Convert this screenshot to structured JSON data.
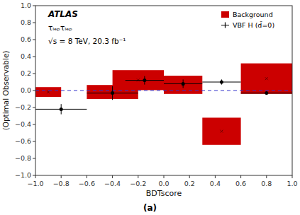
{
  "chart_data": {
    "type": "scatter",
    "x_label": "BDTscore",
    "y_label": "⟨Optimal Observable⟩",
    "caption": "(a)",
    "annotations": [
      "ATLAS",
      "τₗₑₚτₗₑₚ",
      "√s = 8 TeV, 20.3 fb⁻¹"
    ],
    "xlim": [
      -1,
      1
    ],
    "ylim": [
      -1,
      1
    ],
    "xticks": [
      {
        "value": -1.0,
        "label": "−1.0"
      },
      {
        "value": -0.8,
        "label": "−0.8"
      },
      {
        "value": -0.6,
        "label": "−0.6"
      },
      {
        "value": -0.4,
        "label": "−0.4"
      },
      {
        "value": -0.2,
        "label": "−0.2"
      },
      {
        "value": 0.0,
        "label": "0.0"
      },
      {
        "value": 0.2,
        "label": "0.2"
      },
      {
        "value": 0.4,
        "label": "0.4"
      },
      {
        "value": 0.6,
        "label": "0.6"
      },
      {
        "value": 0.8,
        "label": "0.8"
      },
      {
        "value": 1.0,
        "label": "1.0"
      }
    ],
    "yticks": [
      {
        "value": -1.0,
        "label": "−1.0"
      },
      {
        "value": -0.8,
        "label": "−0.8"
      },
      {
        "value": -0.6,
        "label": "−0.6"
      },
      {
        "value": -0.4,
        "label": "−0.4"
      },
      {
        "value": -0.2,
        "label": "−0.2"
      },
      {
        "value": 0.0,
        "label": "0.0"
      },
      {
        "value": 0.2,
        "label": "0.2"
      },
      {
        "value": 0.4,
        "label": "0.4"
      },
      {
        "value": 0.6,
        "label": "0.6"
      },
      {
        "value": 0.8,
        "label": "0.8"
      },
      {
        "value": 1.0,
        "label": "1.0"
      }
    ],
    "grid": false,
    "legend": "upper right",
    "reference_lines": [
      {
        "value": 0.0,
        "color": "#3333cc",
        "line_style": "dashed"
      }
    ],
    "series": [
      {
        "name": "Background",
        "type": "rect",
        "color": "#cc0000",
        "x0": [
          -1.0,
          -0.6,
          -0.4,
          0.0,
          0.3,
          0.6
        ],
        "x1": [
          -0.8,
          -0.2,
          0.0,
          0.3,
          0.6,
          1.0
        ],
        "y0": [
          -0.075,
          -0.1,
          0.005,
          -0.04,
          -0.64,
          -0.04
        ],
        "y1": [
          0.04,
          0.065,
          0.24,
          0.175,
          -0.32,
          0.32
        ]
      },
      {
        "name": "VBF H (d̃=0)",
        "type": "errorbar",
        "color": "black",
        "marker": "circle",
        "x": [
          -0.8,
          -0.4,
          -0.15,
          0.15,
          0.45,
          0.8
        ],
        "values": [
          -0.22,
          -0.03,
          0.12,
          0.08,
          0.1,
          -0.03
        ],
        "xerr": [
          0.2,
          0.2,
          0.15,
          0.15,
          0.15,
          0.2
        ],
        "yerr": [
          0.06,
          0.08,
          0.05,
          0.05,
          0.03,
          0.02
        ]
      }
    ]
  }
}
